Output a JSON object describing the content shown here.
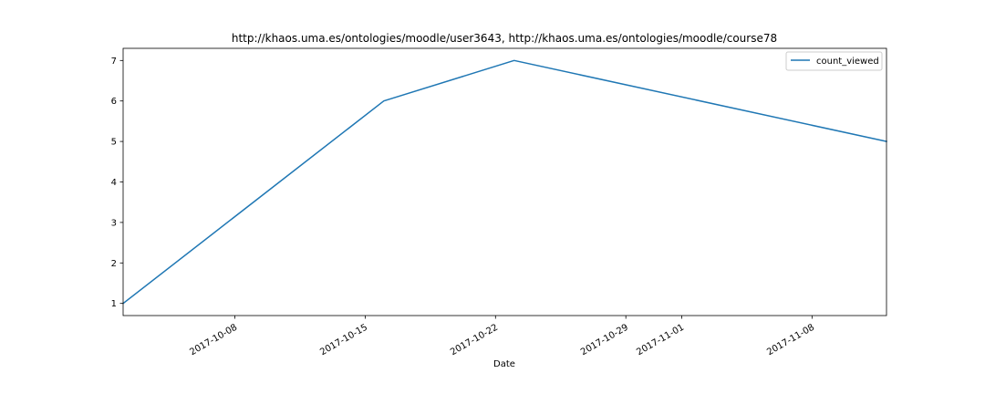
{
  "chart_data": {
    "type": "line",
    "title": "http://khaos.uma.es/ontologies/moodle/user3643, http://khaos.uma.es/ontologies/moodle/course78",
    "xlabel": "Date",
    "ylabel": "",
    "x_type": "date",
    "xlim": [
      "2017-10-02",
      "2017-11-12"
    ],
    "ylim": [
      0.7,
      7.3
    ],
    "x_ticks": [
      "2017-10-08",
      "2017-10-15",
      "2017-10-22",
      "2017-10-29",
      "2017-11-01",
      "2017-11-08"
    ],
    "y_ticks": [
      1,
      2,
      3,
      4,
      5,
      6,
      7
    ],
    "grid": false,
    "legend": {
      "position": "top-right",
      "entries": [
        "count_viewed"
      ]
    },
    "series": [
      {
        "name": "count_viewed",
        "color": "#1f77b4",
        "x": [
          "2017-10-02",
          "2017-10-16",
          "2017-10-23",
          "2017-11-12"
        ],
        "y": [
          1,
          6,
          7,
          5
        ]
      }
    ]
  }
}
